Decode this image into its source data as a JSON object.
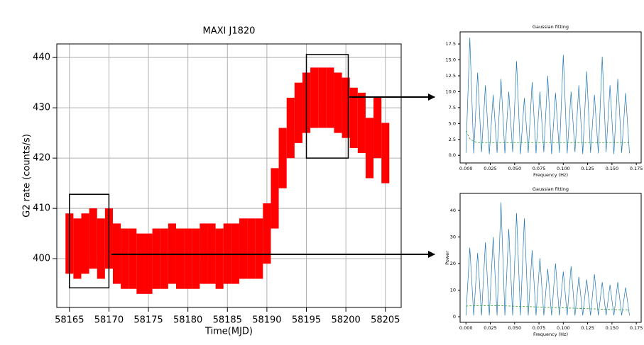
{
  "chart_data": [
    {
      "type": "errorbar",
      "title": "MAXI J1820",
      "x_label": "Time(MJD)",
      "y_label": "G2 rate (counts/s)",
      "color": "#ff0000",
      "grid": true,
      "x": [
        58165,
        58166,
        58167,
        58168,
        58169,
        58170,
        58171,
        58172,
        58173,
        58174,
        58175,
        58176,
        58177,
        58178,
        58179,
        58180,
        58181,
        58182,
        58183,
        58184,
        58185,
        58186,
        58187,
        58188,
        58189,
        58190,
        58191,
        58192,
        58193,
        58194,
        58195,
        58196,
        58197,
        58198,
        58199,
        58200,
        58201,
        58202,
        58203,
        58204,
        58205
      ],
      "values": [
        403,
        402,
        403,
        404,
        402,
        404,
        401,
        400,
        400,
        399,
        399,
        400,
        400,
        401,
        400,
        400,
        400,
        401,
        401,
        400,
        401,
        401,
        402,
        402,
        402,
        405,
        412,
        420,
        426,
        429,
        431,
        432,
        432,
        432,
        431,
        430,
        428,
        427,
        422,
        426,
        421
      ],
      "errors": [
        6,
        6,
        6,
        6,
        6,
        6,
        6,
        6,
        6,
        6,
        6,
        6,
        6,
        6,
        6,
        6,
        6,
        6,
        6,
        6,
        6,
        6,
        6,
        6,
        6,
        6,
        6,
        6,
        6,
        6,
        6,
        6,
        6,
        6,
        6,
        6,
        6,
        6,
        6,
        6,
        6
      ],
      "highlight_boxes": [
        {
          "x": [
            58165,
            58170
          ],
          "y": [
            394.2,
            412.8
          ]
        },
        {
          "x": [
            58195,
            58200.3
          ],
          "y": [
            420,
            440.6
          ]
        }
      ],
      "xlim": [
        58163.4,
        58207
      ],
      "ylim": [
        390.3,
        442.7
      ],
      "xticks": [
        58165,
        58170,
        58175,
        58180,
        58185,
        58190,
        58195,
        58200,
        58205
      ],
      "yticks": [
        400,
        410,
        420,
        430,
        440
      ]
    },
    {
      "type": "line",
      "title": "Gaussian fitting",
      "x_label": "Frequency (Hz)",
      "grid": false,
      "x": [
        0,
        0.004,
        0.008,
        0.012,
        0.016,
        0.02,
        0.024,
        0.028,
        0.032,
        0.036,
        0.04,
        0.044,
        0.048,
        0.052,
        0.056,
        0.06,
        0.064,
        0.068,
        0.072,
        0.076,
        0.08,
        0.084,
        0.088,
        0.092,
        0.096,
        0.1,
        0.104,
        0.108,
        0.112,
        0.116,
        0.12,
        0.124,
        0.128,
        0.132,
        0.136,
        0.14,
        0.144,
        0.148,
        0.152,
        0.156,
        0.16,
        0.164,
        0.168
      ],
      "series": [
        {
          "color": "#1f77b4",
          "values": [
            0.4,
            18.5,
            0.3,
            13,
            0.5,
            11,
            0.2,
            9.5,
            0.4,
            12,
            0.3,
            10,
            0.5,
            14.8,
            0.2,
            9,
            0.4,
            11.5,
            0.3,
            10,
            0.5,
            12.5,
            0.2,
            9.8,
            0.4,
            15.8,
            0.3,
            10,
            0.5,
            11,
            0.2,
            13.2,
            0.4,
            9.5,
            0.3,
            15.5,
            0.5,
            11,
            0.2,
            12,
            0.4,
            9.8,
            0.3
          ]
        },
        {
          "color": "#2ca02c",
          "dashed": true,
          "values": [
            3.8,
            2.6,
            2.2,
            2.0,
            2.0,
            2.0,
            2.0,
            2.0,
            2.0,
            2.0,
            2.0,
            2.0,
            2.0,
            2.0,
            2.0,
            2.0,
            2.0,
            2.0,
            2.0,
            2.0,
            2.0,
            2.0,
            2.0,
            2.0,
            2.0,
            2.0,
            2.0,
            2.0,
            2.0,
            2.0,
            2.0,
            2.0,
            2.0,
            2.0,
            2.0,
            2.0,
            2.0,
            2.0,
            2.0,
            2.0,
            2.0,
            2.0,
            2.0
          ]
        }
      ],
      "xlim": [
        -0.006,
        0.18
      ],
      "ylim": [
        -1.2,
        19.4
      ],
      "xticks": [
        {
          "value": 0,
          "label": "0.000"
        },
        {
          "value": 0.025,
          "label": "0.025"
        },
        {
          "value": 0.05,
          "label": "0.050"
        },
        {
          "value": 0.075,
          "label": "0.075"
        },
        {
          "value": 0.1,
          "label": "0.100"
        },
        {
          "value": 0.125,
          "label": "0.125"
        },
        {
          "value": 0.15,
          "label": "0.150"
        },
        {
          "value": 0.175,
          "label": "0.175"
        }
      ],
      "yticks": [
        {
          "value": 0,
          "label": "0.0"
        },
        2.5,
        {
          "value": 5,
          "label": "5.0"
        },
        7.5,
        {
          "value": 10,
          "label": "10.0"
        },
        12.5,
        {
          "value": 15,
          "label": "15.0"
        },
        17.5
      ]
    },
    {
      "type": "line",
      "title": "Gaussian fitting",
      "x_label": "Frequency (Hz)",
      "y_label": "Power",
      "grid": false,
      "x": [
        0,
        0.004,
        0.008,
        0.012,
        0.016,
        0.02,
        0.024,
        0.028,
        0.032,
        0.036,
        0.04,
        0.044,
        0.048,
        0.052,
        0.056,
        0.06,
        0.064,
        0.068,
        0.072,
        0.076,
        0.08,
        0.084,
        0.088,
        0.092,
        0.096,
        0.1,
        0.104,
        0.108,
        0.112,
        0.116,
        0.12,
        0.124,
        0.128,
        0.132,
        0.136,
        0.14,
        0.144,
        0.148,
        0.152,
        0.156,
        0.16,
        0.164,
        0.168
      ],
      "series": [
        {
          "color": "#1f77b4",
          "values": [
            0.5,
            26,
            0.5,
            24,
            0.5,
            28,
            0.5,
            30,
            0.5,
            43,
            0.5,
            33,
            0.5,
            39,
            0.5,
            37,
            0.5,
            25,
            0.5,
            22,
            0.5,
            18,
            0.5,
            20,
            0.5,
            17,
            0.5,
            19,
            0.5,
            15,
            0.5,
            14,
            0.5,
            16,
            0.5,
            13,
            0.5,
            12,
            0.5,
            13,
            0.5,
            11,
            0.5
          ]
        },
        {
          "color": "#2ca02c",
          "dashed": true,
          "values": [
            4.0,
            4.1,
            4.1,
            4.2,
            4.2,
            4.2,
            4.2,
            4.2,
            4.2,
            4.2,
            4.1,
            4.05,
            4.0,
            3.95,
            3.9,
            3.85,
            3.8,
            3.75,
            3.7,
            3.65,
            3.6,
            3.55,
            3.5,
            3.45,
            3.4,
            3.35,
            3.3,
            3.25,
            3.2,
            3.15,
            3.1,
            3.05,
            3.0,
            2.95,
            2.9,
            2.85,
            2.8,
            2.75,
            2.7,
            2.65,
            2.6,
            2.55,
            2.5
          ]
        }
      ],
      "xlim": [
        -0.006,
        0.18
      ],
      "ylim": [
        -2.1,
        46.4
      ],
      "xticks": [
        {
          "value": 0,
          "label": "0.000"
        },
        {
          "value": 0.025,
          "label": "0.025"
        },
        {
          "value": 0.05,
          "label": "0.050"
        },
        {
          "value": 0.075,
          "label": "0.075"
        },
        {
          "value": 0.1,
          "label": "0.100"
        },
        {
          "value": 0.125,
          "label": "0.125"
        },
        {
          "value": 0.15,
          "label": "0.150"
        },
        {
          "value": 0.175,
          "label": "0.175"
        }
      ],
      "yticks": [
        0,
        10,
        20,
        30,
        40
      ]
    }
  ]
}
